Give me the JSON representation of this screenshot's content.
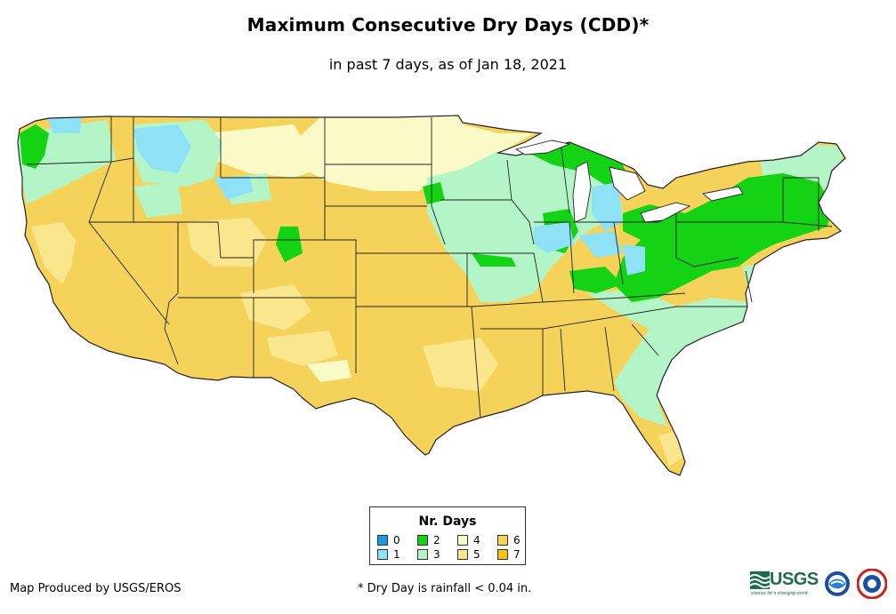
{
  "title": "Maximum Consecutive Dry Days (CDD)*",
  "subtitle": "in past 7 days, as of Jan 18, 2021",
  "legend": {
    "title": "Nr. Days",
    "items": [
      {
        "label": "0",
        "color": "#1a9ae6"
      },
      {
        "label": "1",
        "color": "#8ee2f5"
      },
      {
        "label": "2",
        "color": "#14d214"
      },
      {
        "label": "3",
        "color": "#b4f5c8"
      },
      {
        "label": "4",
        "color": "#fafac8"
      },
      {
        "label": "5",
        "color": "#fae68c"
      },
      {
        "label": "6",
        "color": "#f5d25a"
      },
      {
        "label": "7",
        "color": "#f5c314"
      }
    ]
  },
  "credit": "Map Produced by USGS/EROS",
  "footnote": "* Dry Day is rainfall < 0.04 in.",
  "logos": {
    "usgs": "USGS",
    "usgs_tagline": "science for a changing world"
  },
  "icons": [
    "usgs-logo",
    "noaa-logo-icon",
    "nws-logo-icon"
  ]
}
